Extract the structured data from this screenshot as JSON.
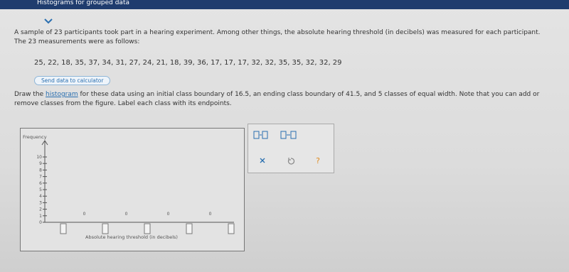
{
  "header": {
    "title": "Histograms for grouped data"
  },
  "problem": {
    "intro": "A sample of 23 participants took part in a hearing experiment. Among other things, the absolute hearing threshold (in decibels) was measured for each participant. The 23 measurements were as follows:",
    "data": "25, 22, 18, 35, 37, 34, 31, 27, 24, 21, 18, 39, 36, 17, 17, 17, 32, 32, 35, 35, 32, 32, 29",
    "button": "Send data to calculator",
    "instructions_before": "Draw the",
    "instructions_link": "histogram",
    "instructions_after": "for these data using an initial class boundary of 16.5, an ending class boundary of 41.5, and 5 classes of equal width. Note that you can add or remove classes from the figure. Label each class with its endpoints."
  },
  "graph": {
    "y_label": "Frequency",
    "yticks": [
      0,
      1,
      2,
      3,
      4,
      5,
      6,
      7,
      8,
      9,
      10
    ],
    "bar_values": [
      0,
      0,
      0,
      0
    ],
    "x_label": "Absolute hearing threshold (in decibels)"
  },
  "toolbar": {
    "help": "?"
  }
}
